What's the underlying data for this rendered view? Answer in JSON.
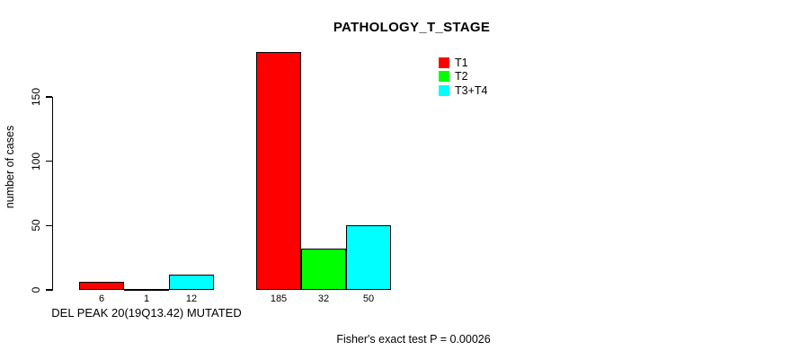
{
  "chart_data": {
    "type": "bar",
    "title": "PATHOLOGY_T_STAGE",
    "ylabel": "number of cases",
    "xlabel": "",
    "yticks": [
      0,
      50,
      100,
      150
    ],
    "ylim": [
      0,
      185
    ],
    "grid": false,
    "legend_position": "top-right",
    "bar_value_labels": true,
    "series": [
      {
        "name": "T1",
        "color": "#ff0000"
      },
      {
        "name": "T2",
        "color": "#00ff00"
      },
      {
        "name": "T3+T4",
        "color": "#00ffff"
      }
    ],
    "categories": [
      "DEL PEAK 20(19Q13.42) MUTATED",
      ""
    ],
    "groups": [
      {
        "label": "DEL PEAK 20(19Q13.42) MUTATED",
        "values": [
          6,
          1,
          12
        ]
      },
      {
        "label": "",
        "values": [
          185,
          32,
          50
        ]
      }
    ],
    "annotation": "Fisher's exact test P = 0.00026"
  }
}
